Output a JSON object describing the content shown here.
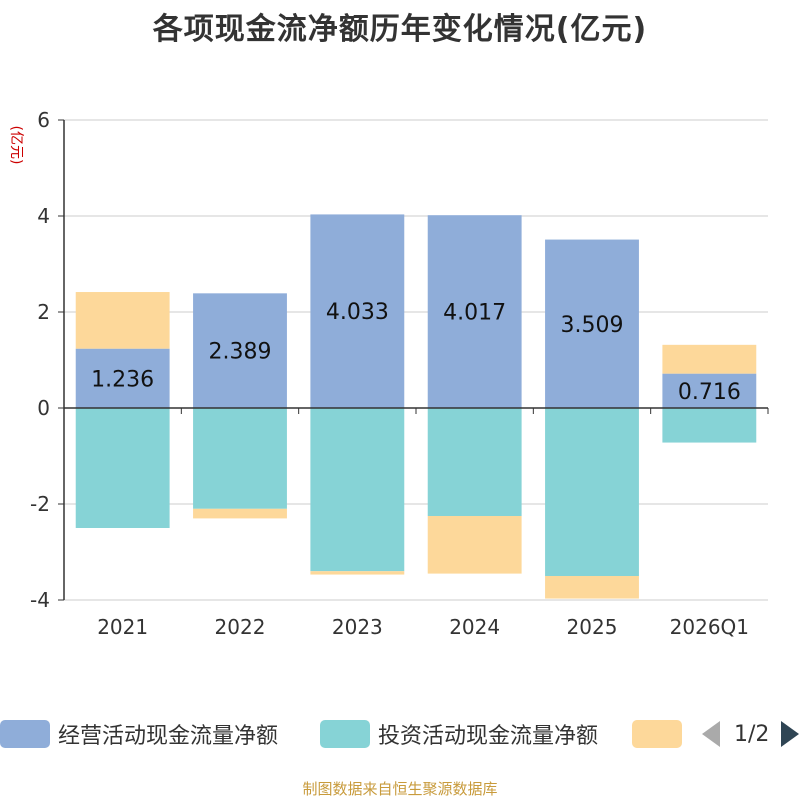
{
  "chart_data": {
    "type": "bar",
    "stacked": true,
    "title": "各项现金流净额历年变化情况(亿元)",
    "ylabel": "(亿元)",
    "categories": [
      "2021",
      "2022",
      "2023",
      "2024",
      "2025",
      "2026Q1"
    ],
    "ylim": [
      -4,
      6
    ],
    "yticks": [
      -4,
      -2,
      0,
      2,
      4,
      6
    ],
    "grid": true,
    "legend_position": "bottom",
    "series": [
      {
        "name": "经营活动现金流量净额",
        "color": "#8fadd9",
        "values": [
          1.236,
          2.389,
          4.033,
          4.017,
          3.509,
          0.716
        ],
        "labels": [
          "1.236",
          "2.389",
          "4.033",
          "4.017",
          "3.509",
          "0.716"
        ]
      },
      {
        "name": "投资活动现金流量净额",
        "color": "#86d3d6",
        "values": [
          -2.5,
          -2.1,
          -3.4,
          -2.25,
          -3.5,
          -0.72
        ]
      },
      {
        "name": "",
        "color": "#fdd89a",
        "values": [
          1.18,
          -0.2,
          -0.07,
          -1.2,
          -0.47,
          0.6
        ]
      }
    ]
  },
  "legend": {
    "items": [
      "经营活动现金流量净额",
      "投资活动现金流量净额",
      ""
    ],
    "page": "1/2"
  },
  "source": "制图数据来自恒生聚源数据库"
}
